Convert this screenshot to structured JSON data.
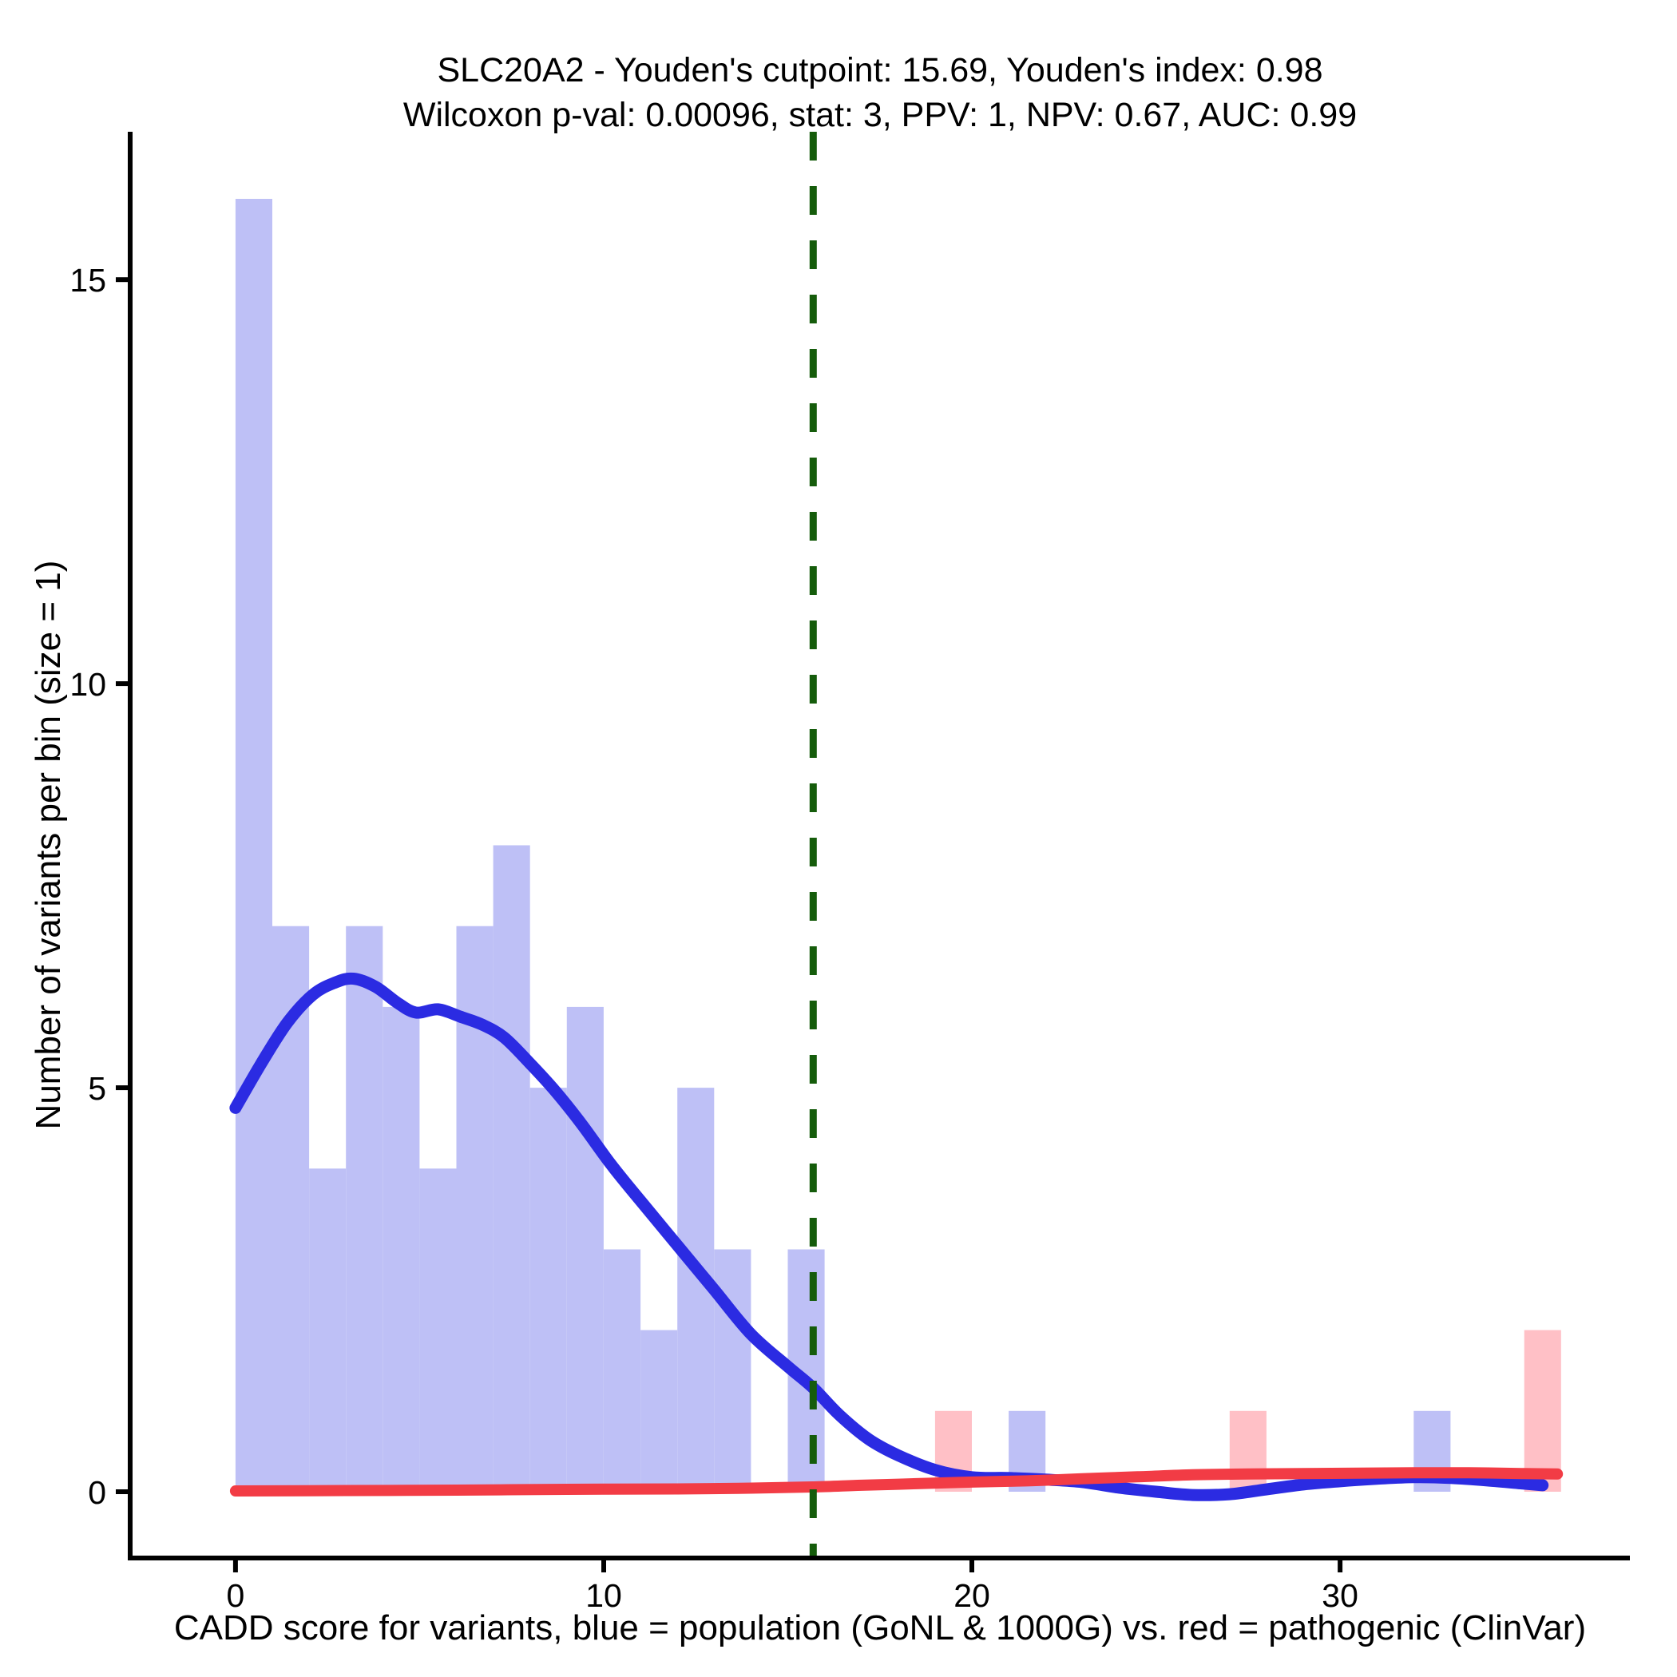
{
  "chart_data": {
    "type": "bar",
    "variant": "histogram-with-density-overlay",
    "title": "SLC20A2 - Youden's cutpoint: 15.69, Youden's index: 0.98",
    "subtitle": "Wilcoxon p-val: 0.00096, stat: 3, PPV: 1, NPV: 0.67, AUC: 0.99",
    "xlabel": "CADD score for variants, blue = population (GoNL & 1000G) vs. red = pathogenic (ClinVar)",
    "ylabel": "Number of variants per bin (size = 1)",
    "x_ticks": [
      0,
      10,
      20,
      30
    ],
    "y_ticks": [
      0,
      5,
      10,
      15
    ],
    "xlim": [
      -2.86,
      37.87
    ],
    "ylim": [
      -0.82,
      16.83
    ],
    "grid": false,
    "legend": "none",
    "binwidth": 1,
    "colors": {
      "population_bar": "#bec0f6",
      "pathogenic_bar": "#ffc0c6",
      "population_line": "#2b2be2",
      "pathogenic_line": "#f23c45",
      "cutpoint_line": "#155c0b",
      "axis": "#000000"
    },
    "histogram": [
      {
        "series": "population (GoNL & 1000G)",
        "color_key": "population_bar",
        "bins": [
          [
            0,
            1,
            16
          ],
          [
            1,
            2,
            7
          ],
          [
            2,
            3,
            4
          ],
          [
            3,
            4,
            7
          ],
          [
            4,
            5,
            6
          ],
          [
            5,
            6,
            4
          ],
          [
            6,
            7,
            7
          ],
          [
            7,
            8,
            8
          ],
          [
            8,
            9,
            5
          ],
          [
            9,
            10,
            6
          ],
          [
            10,
            11,
            3
          ],
          [
            11,
            12,
            2
          ],
          [
            12,
            13,
            5
          ],
          [
            13,
            14,
            3
          ],
          [
            15,
            16,
            3
          ],
          [
            21,
            22,
            1
          ],
          [
            32,
            33,
            1
          ]
        ]
      },
      {
        "series": "pathogenic (ClinVar)",
        "color_key": "pathogenic_bar",
        "bins": [
          [
            19,
            20,
            1
          ],
          [
            27,
            28,
            1
          ],
          [
            35,
            36,
            2
          ]
        ]
      }
    ],
    "density_curves": [
      {
        "series": "population (GoNL & 1000G)",
        "color_key": "population_line",
        "stroke_width": 15,
        "points": [
          [
            0,
            4.75
          ],
          [
            0.7,
            5.3
          ],
          [
            1.4,
            5.8
          ],
          [
            2.1,
            6.15
          ],
          [
            2.7,
            6.3
          ],
          [
            3.2,
            6.35
          ],
          [
            3.8,
            6.25
          ],
          [
            4.4,
            6.05
          ],
          [
            4.9,
            5.93
          ],
          [
            5.5,
            5.97
          ],
          [
            6.1,
            5.88
          ],
          [
            6.7,
            5.78
          ],
          [
            7.3,
            5.62
          ],
          [
            8,
            5.3
          ],
          [
            8.7,
            4.95
          ],
          [
            9.4,
            4.55
          ],
          [
            10.2,
            4.05
          ],
          [
            11,
            3.6
          ],
          [
            12,
            3.05
          ],
          [
            13,
            2.5
          ],
          [
            14,
            1.95
          ],
          [
            15,
            1.55
          ],
          [
            15.7,
            1.28
          ],
          [
            16.4,
            0.95
          ],
          [
            17.2,
            0.65
          ],
          [
            18,
            0.45
          ],
          [
            19,
            0.27
          ],
          [
            20,
            0.18
          ],
          [
            21,
            0.17
          ],
          [
            22,
            0.15
          ],
          [
            23,
            0.12
          ],
          [
            24,
            0.05
          ],
          [
            25,
            0.0
          ],
          [
            26,
            -0.04
          ],
          [
            27,
            -0.03
          ],
          [
            28,
            0.03
          ],
          [
            29,
            0.09
          ],
          [
            30,
            0.13
          ],
          [
            31,
            0.16
          ],
          [
            32,
            0.18
          ],
          [
            33,
            0.17
          ],
          [
            34,
            0.14
          ],
          [
            35,
            0.1
          ],
          [
            35.5,
            0.08
          ]
        ]
      },
      {
        "series": "pathogenic (ClinVar)",
        "color_key": "pathogenic_line",
        "stroke_width": 14,
        "points": [
          [
            0,
            0.01
          ],
          [
            3,
            0.015
          ],
          [
            6,
            0.02
          ],
          [
            9,
            0.03
          ],
          [
            12,
            0.035
          ],
          [
            14,
            0.045
          ],
          [
            15.7,
            0.06
          ],
          [
            17,
            0.08
          ],
          [
            18.5,
            0.1
          ],
          [
            20,
            0.12
          ],
          [
            21.5,
            0.135
          ],
          [
            23,
            0.16
          ],
          [
            24.5,
            0.185
          ],
          [
            26,
            0.21
          ],
          [
            27.5,
            0.22
          ],
          [
            29,
            0.225
          ],
          [
            30.5,
            0.23
          ],
          [
            32,
            0.235
          ],
          [
            33.5,
            0.235
          ],
          [
            35,
            0.225
          ],
          [
            35.9,
            0.22
          ]
        ]
      }
    ],
    "cutpoint_line": {
      "x": 15.69,
      "style": "dashed",
      "color_key": "cutpoint_line"
    }
  }
}
